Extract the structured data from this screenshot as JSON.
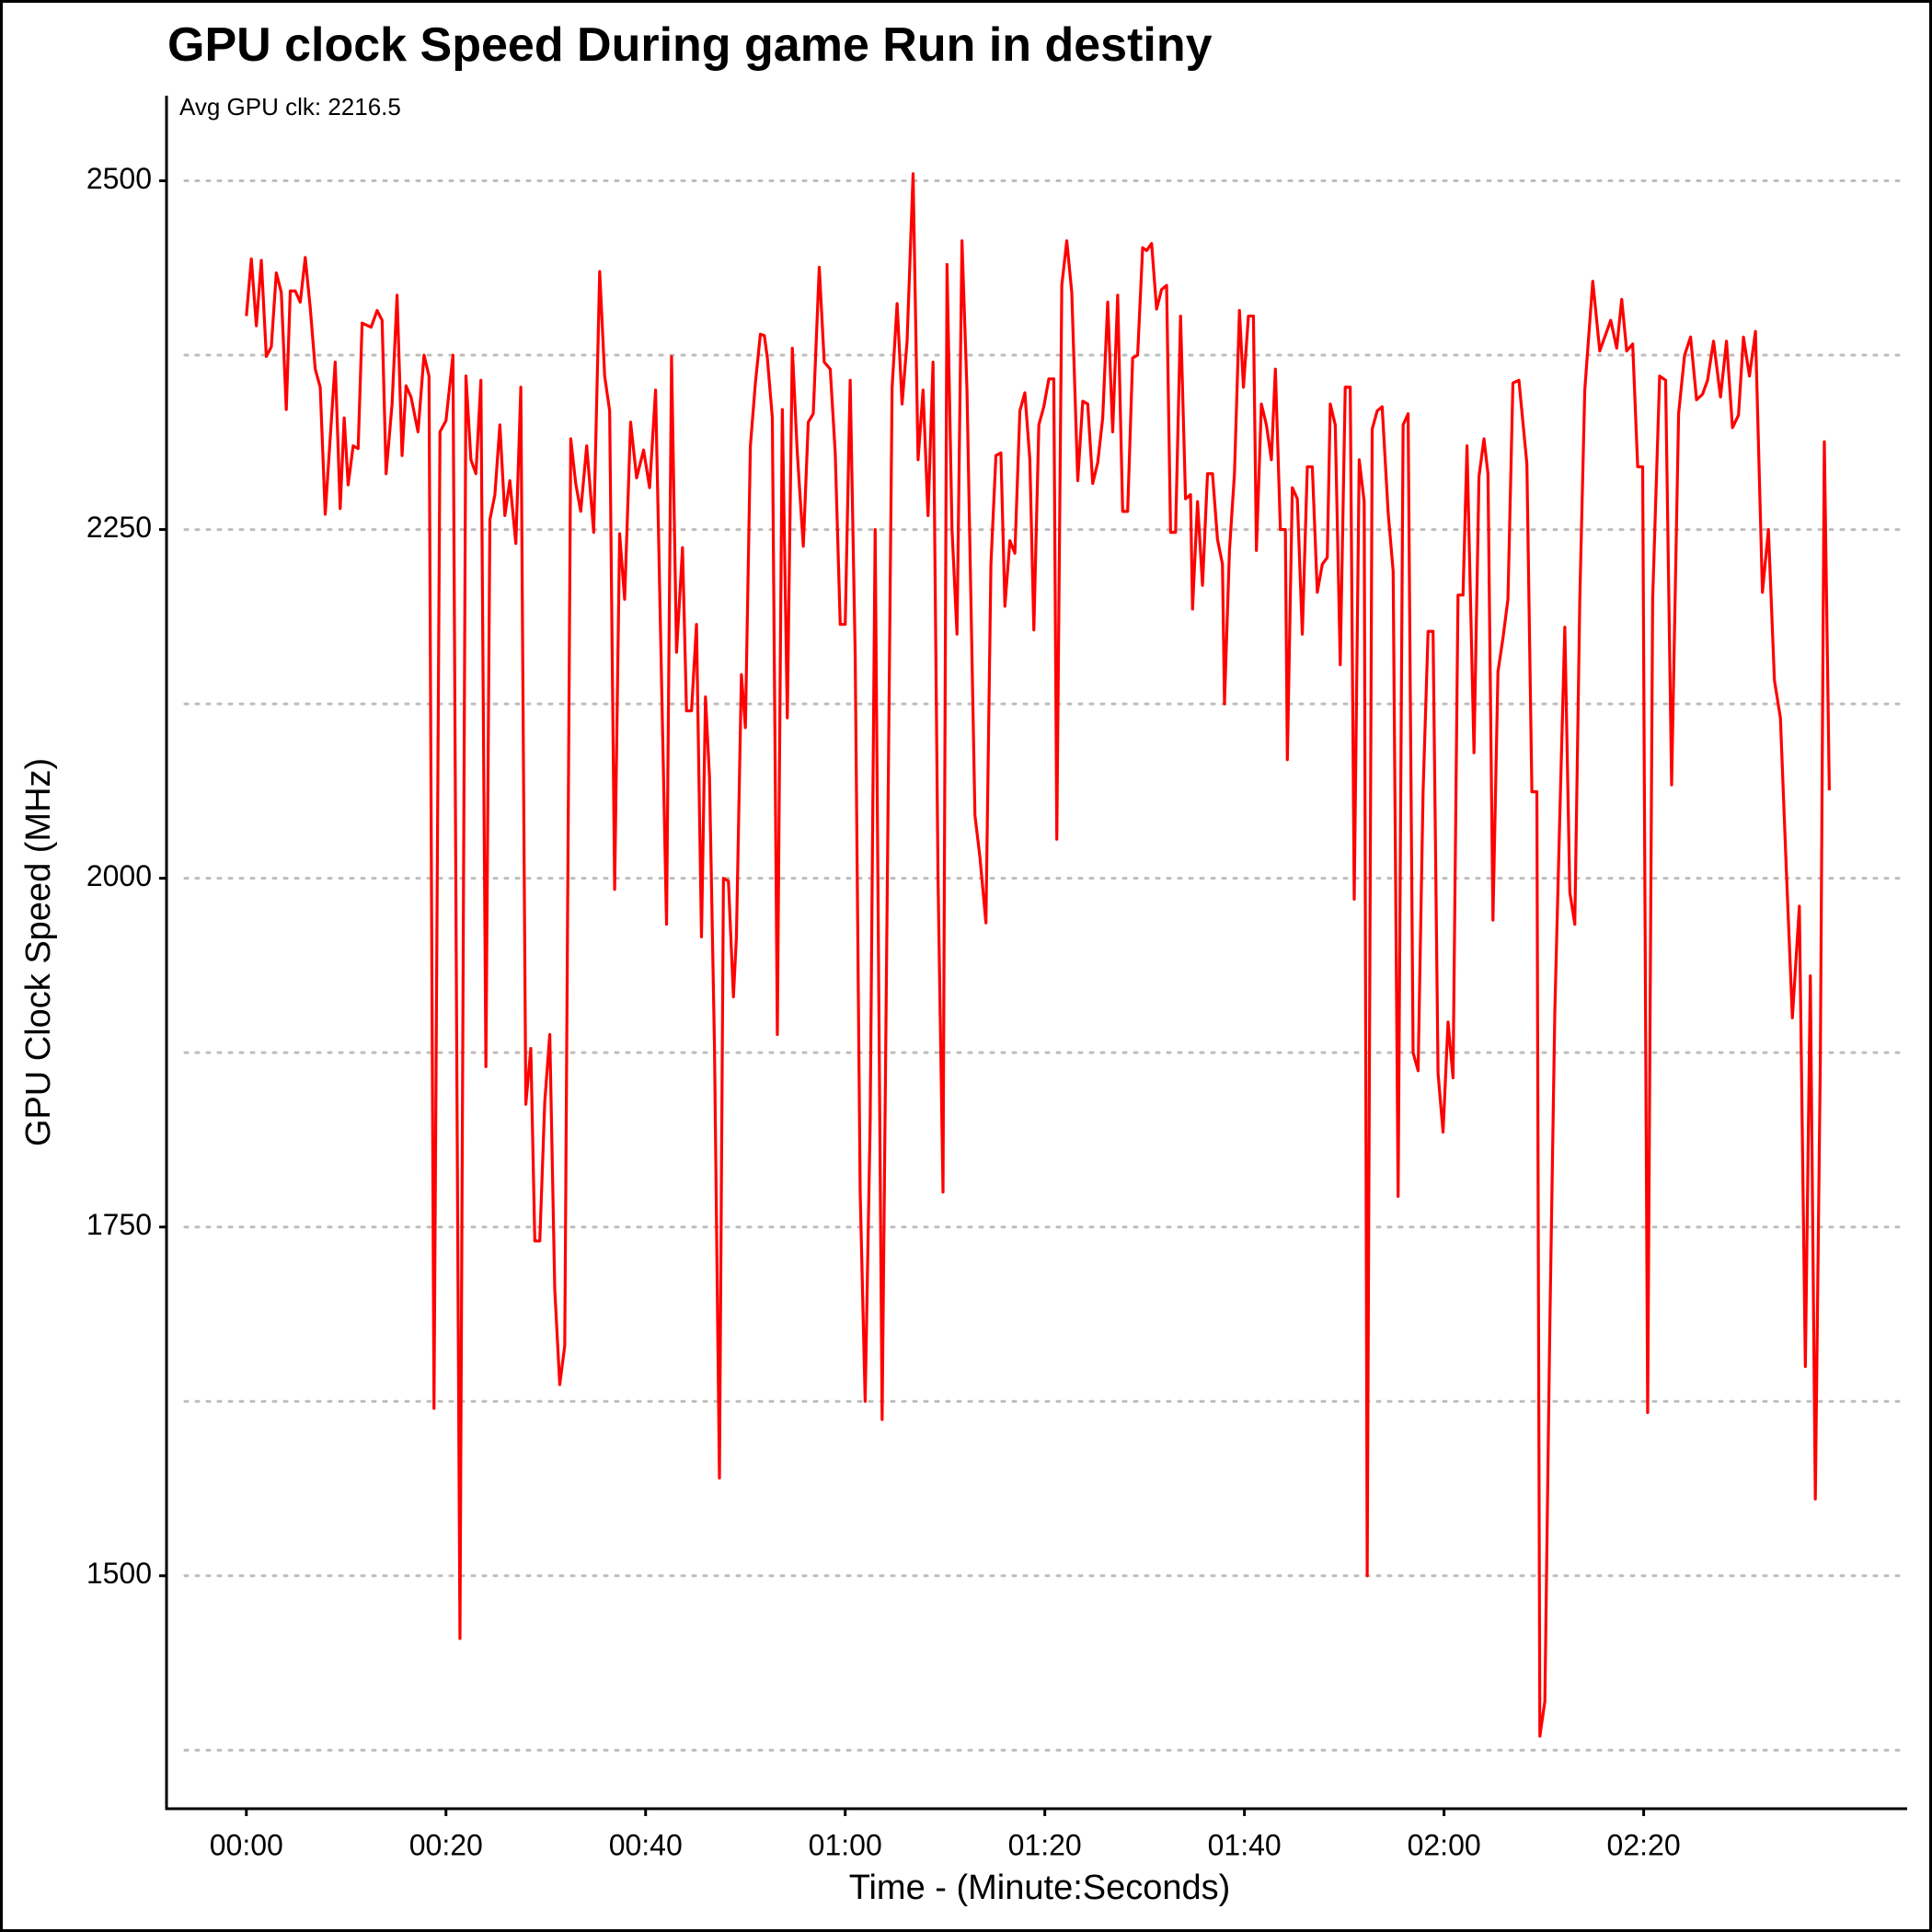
{
  "chart_data": {
    "type": "line",
    "title": "GPU clock Speed During game Run in destiny",
    "annotation": "Avg GPU clk: 2216.5",
    "xlabel": "Time - (Minute:Seconds)",
    "ylabel": "GPU Clock Speed (MHz)",
    "color": "#ff0000",
    "grid": true,
    "xlim": [
      -8.0,
      166.4
    ],
    "ylim": [
      1333,
      2561
    ],
    "xticks": [
      {
        "value": 0,
        "label": "00:00"
      },
      {
        "value": 20,
        "label": "00:20"
      },
      {
        "value": 40,
        "label": "00:40"
      },
      {
        "value": 60,
        "label": "01:00"
      },
      {
        "value": 80,
        "label": "01:20"
      },
      {
        "value": 100,
        "label": "01:40"
      },
      {
        "value": 120,
        "label": "02:00"
      },
      {
        "value": 140,
        "label": "02:20"
      }
    ],
    "yticks": [
      1500,
      1750,
      2000,
      2250,
      2500
    ],
    "minor_yticks": [
      1375,
      1625,
      1875,
      2125,
      2375
    ],
    "x": [
      0,
      0.5,
      1.0,
      1.5,
      2.0,
      2.5,
      3.0,
      3.5,
      4.0,
      4.4,
      4.9,
      5.4,
      5.9,
      6.4,
      6.9,
      7.4,
      7.9,
      8.9,
      9.4,
      9.8,
      10.2,
      10.7,
      11.2,
      11.6,
      12.5,
      13.1,
      13.6,
      14.0,
      14.6,
      15.1,
      15.6,
      16.0,
      16.5,
      17.2,
      17.8,
      18.3,
      18.8,
      19.4,
      20.0,
      20.7,
      21.4,
      22.0,
      22.5,
      23.0,
      23.5,
      24.0,
      24.4,
      24.9,
      25.4,
      25.9,
      26.4,
      27.0,
      27.5,
      28.0,
      28.5,
      28.9,
      29.4,
      29.9,
      30.4,
      30.9,
      31.4,
      31.9,
      32.5,
      33.0,
      33.5,
      34.1,
      34.8,
      35.4,
      35.9,
      36.4,
      36.9,
      37.4,
      37.9,
      38.5,
      39.1,
      39.8,
      40.4,
      41.0,
      42.1,
      42.6,
      43.1,
      43.7,
      44.1,
      44.6,
      45.1,
      45.6,
      46.0,
      46.4,
      46.9,
      47.4,
      47.8,
      48.3,
      48.8,
      49.1,
      49.6,
      50.0,
      50.5,
      51.0,
      51.5,
      51.9,
      52.2,
      52.7,
      53.2,
      53.7,
      54.2,
      54.7,
      55.2,
      55.8,
      56.3,
      56.8,
      57.4,
      57.9,
      58.5,
      59.0,
      59.5,
      60.0,
      60.5,
      61.0,
      61.5,
      62.0,
      62.5,
      63.0,
      63.7,
      64.7,
      65.2,
      65.7,
      66.2,
      66.8,
      67.3,
      67.8,
      68.3,
      68.8,
      69.3,
      69.8,
      70.2,
      70.7,
      71.2,
      71.7,
      72.2,
      73.0,
      73.5,
      74.1,
      74.6,
      75.1,
      75.6,
      76.0,
      76.5,
      77.0,
      77.5,
      78.0,
      78.5,
      78.9,
      79.4,
      79.9,
      80.4,
      80.9,
      81.2,
      81.7,
      82.2,
      82.7,
      83.3,
      83.8,
      84.3,
      84.8,
      85.3,
      85.8,
      86.3,
      86.8,
      87.3,
      87.8,
      88.3,
      88.8,
      89.3,
      89.8,
      90.2,
      90.7,
      91.2,
      91.7,
      92.2,
      92.6,
      93.1,
      93.6,
      94.1,
      94.6,
      94.8,
      95.3,
      95.8,
      96.3,
      96.8,
      97.3,
      97.8,
      98.0,
      98.5,
      99.0,
      99.5,
      99.9,
      100.4,
      100.9,
      101.2,
      101.7,
      102.2,
      102.7,
      103.1,
      103.6,
      104.1,
      104.3,
      104.8,
      105.3,
      105.8,
      106.3,
      106.8,
      107.3,
      107.8,
      108.3,
      108.6,
      109.1,
      109.6,
      110.1,
      110.6,
      111.0,
      111.5,
      112.0,
      112.3,
      112.8,
      113.3,
      113.8,
      114.4,
      114.9,
      115.4,
      115.9,
      116.4,
      116.9,
      117.4,
      117.9,
      118.4,
      118.9,
      119.4,
      119.9,
      120.4,
      120.9,
      121.4,
      121.9,
      122.3,
      123.0,
      123.5,
      124.0,
      124.4,
      124.9,
      125.4,
      125.9,
      126.4,
      126.9,
      127.5,
      128.3,
      128.8,
      129.3,
      129.6,
      130.1,
      130.6,
      131.1,
      131.6,
      132.1,
      132.6,
      133.1,
      133.6,
      134.1,
      134.9,
      135.6,
      136.2,
      136.7,
      137.3,
      137.8,
      138.3,
      138.9,
      139.4,
      139.9,
      140.4,
      140.9,
      141.6,
      142.2,
      142.8,
      143.5,
      144.1,
      144.7,
      145.3,
      145.9,
      146.4,
      147.0,
      147.7,
      148.3,
      148.9,
      149.5,
      150.0,
      150.6,
      151.2,
      151.9,
      152.5,
      153.1,
      153.7,
      154.3,
      154.9,
      155.6,
      156.2,
      156.7,
      157.2,
      157.7,
      158.1,
      158.6
    ],
    "values": [
      2403,
      2444,
      2396,
      2443,
      2374,
      2381,
      2434,
      2420,
      2336,
      2421,
      2421,
      2413,
      2445,
      2409,
      2365,
      2352,
      2261,
      2370,
      2265,
      2330,
      2282,
      2310,
      2308,
      2398,
      2395,
      2407,
      2400,
      2290,
      2340,
      2418,
      2303,
      2353,
      2345,
      2320,
      2375,
      2360,
      1620,
      2320,
      2328,
      2375,
      1455,
      2360,
      2300,
      2290,
      2357,
      1865,
      2257,
      2275,
      2325,
      2260,
      2285,
      2240,
      2352,
      1838,
      1878,
      1740,
      1740,
      1840,
      1888,
      1705,
      1637,
      1665,
      2315,
      2283,
      2263,
      2310,
      2248,
      2435,
      2360,
      2335,
      1992,
      2247,
      2200,
      2327,
      2287,
      2307,
      2280,
      2350,
      1967,
      2374,
      2162,
      2237,
      2120,
      2120,
      2182,
      1958,
      2130,
      2073,
      1880,
      1570,
      2000,
      1998,
      1915,
      1958,
      2146,
      2108,
      2310,
      2355,
      2390,
      2389,
      2373,
      2330,
      1888,
      2336,
      2115,
      2380,
      2305,
      2238,
      2327,
      2333,
      2438,
      2370,
      2365,
      2305,
      2182,
      2182,
      2357,
      2160,
      1775,
      1625,
      1825,
      2250,
      1612,
      2352,
      2412,
      2340,
      2385,
      2505,
      2300,
      2350,
      2260,
      2370,
      2000,
      1775,
      2440,
      2250,
      2175,
      2457,
      2350,
      2045,
      2015,
      1968,
      2225,
      2303,
      2305,
      2195,
      2242,
      2233,
      2335,
      2348,
      2300,
      2178,
      2325,
      2338,
      2358,
      2358,
      2028,
      2425,
      2457,
      2420,
      2285,
      2342,
      2340,
      2283,
      2298,
      2330,
      2413,
      2320,
      2418,
      2263,
      2263,
      2373,
      2375,
      2452,
      2450,
      2455,
      2408,
      2422,
      2425,
      2248,
      2248,
      2403,
      2272,
      2275,
      2193,
      2270,
      2210,
      2290,
      2290,
      2243,
      2225,
      2125,
      2235,
      2290,
      2407,
      2352,
      2403,
      2403,
      2235,
      2340,
      2325,
      2300,
      2365,
      2250,
      2250,
      2085,
      2280,
      2272,
      2175,
      2295,
      2295,
      2205,
      2225,
      2230,
      2340,
      2325,
      2153,
      2352,
      2352,
      1985,
      2300,
      2270,
      1500,
      2322,
      2335,
      2338,
      2262,
      2220,
      1772,
      2325,
      2333,
      1875,
      1862,
      2062,
      2177,
      2177,
      1860,
      1818,
      1897,
      1857,
      2203,
      2203,
      2310,
      2090,
      2288,
      2315,
      2290,
      1970,
      2148,
      2172,
      2200,
      2355,
      2357,
      2297,
      2062,
      2062,
      1385,
      1410,
      1680,
      1905,
      2045,
      2180,
      1990,
      1967,
      2200,
      2350,
      2428,
      2378,
      2390,
      2400,
      2380,
      2415,
      2378,
      2383,
      2295,
      2295,
      1617,
      2200,
      2360,
      2357,
      2067,
      2333,
      2375,
      2388,
      2343,
      2347,
      2357,
      2385,
      2345,
      2385,
      2323,
      2332,
      2388,
      2360,
      2392,
      2205,
      2250,
      2142,
      2115,
      2005,
      1900,
      1980,
      1650,
      1930,
      1555,
      1870,
      2313,
      2063
    ]
  }
}
